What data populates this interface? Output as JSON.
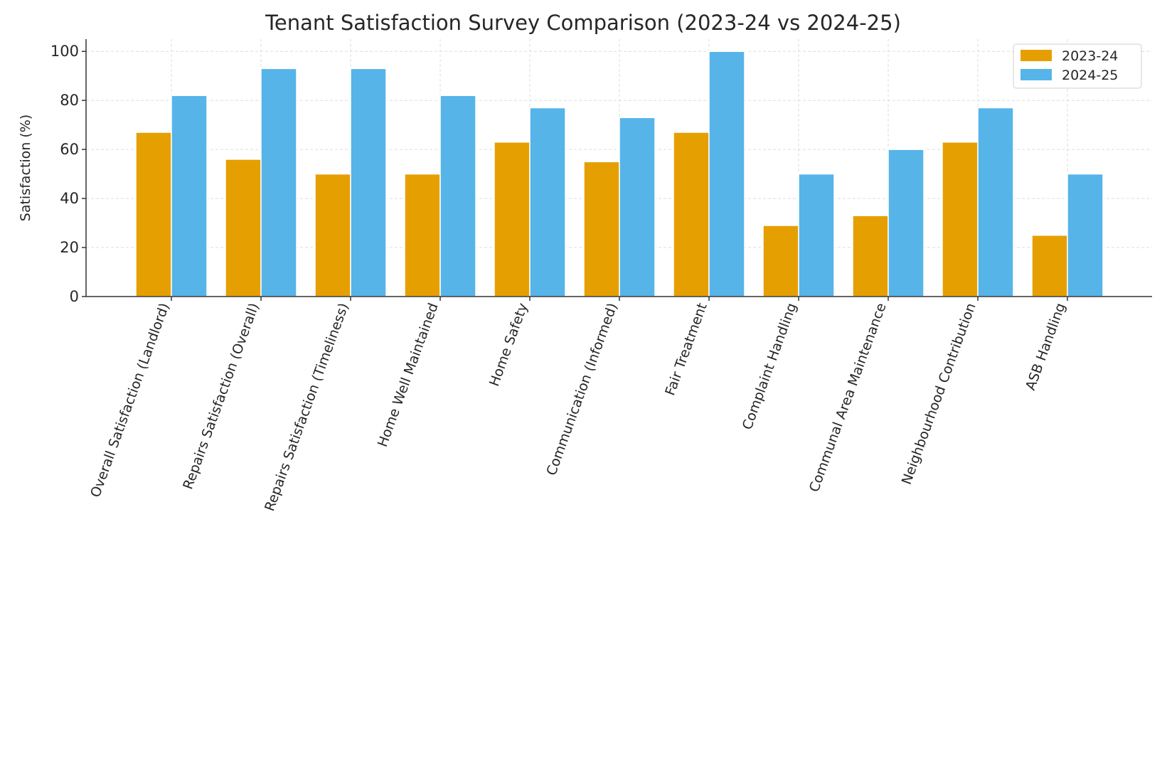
{
  "chart_data": {
    "type": "bar",
    "title": "Tenant Satisfaction Survey Comparison (2023-24 vs 2024-25)",
    "xlabel": "",
    "ylabel": "Satisfaction (%)",
    "ylim": [
      0,
      105
    ],
    "yticks": [
      0,
      20,
      40,
      60,
      80,
      100
    ],
    "grid": true,
    "legend_position": "top-right",
    "categories": [
      "Overall Satisfaction (Landlord)",
      "Repairs Satisfaction (Overall)",
      "Repairs Satisfaction (Timeliness)",
      "Home Well Maintained",
      "Home Safety",
      "Communication (Informed)",
      "Fair Treatment",
      "Complaint Handling",
      "Communal Area Maintenance",
      "Neighbourhood Contribution",
      "ASB Handling"
    ],
    "series": [
      {
        "name": "2023-24",
        "color": "#E69F00",
        "values": [
          67,
          56,
          50,
          50,
          63,
          55,
          67,
          29,
          33,
          63,
          25
        ]
      },
      {
        "name": "2024-25",
        "color": "#56B4E9",
        "values": [
          82,
          93,
          93,
          82,
          77,
          73,
          100,
          50,
          60,
          77,
          50
        ]
      }
    ]
  }
}
